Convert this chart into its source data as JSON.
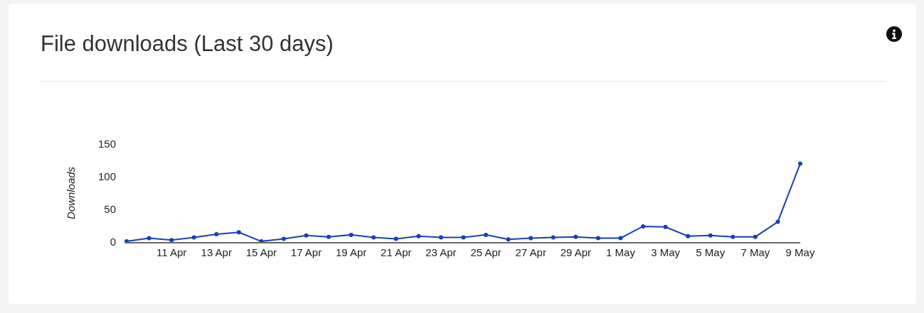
{
  "chart_data": {
    "type": "line",
    "title": "File downloads (Last 30 days)",
    "ylabel": "Downloads",
    "x": [
      "--04-09",
      "--04-10",
      "--04-11",
      "--04-12",
      "--04-13",
      "--04-14",
      "--04-15",
      "--04-16",
      "--04-17",
      "--04-18",
      "--04-19",
      "--04-20",
      "--04-21",
      "--04-22",
      "--04-23",
      "--04-24",
      "--04-25",
      "--04-26",
      "--04-27",
      "--04-28",
      "--04-29",
      "--04-30",
      "--05-01",
      "--05-02",
      "--05-03",
      "--05-04",
      "--05-05",
      "--05-06",
      "--05-07",
      "--05-08",
      "--05-09"
    ],
    "values": [
      1,
      6,
      3,
      7,
      12,
      15,
      1,
      5,
      10,
      8,
      11,
      7,
      5,
      9,
      7,
      7,
      11,
      4,
      6,
      7,
      8,
      6,
      6,
      24,
      23,
      9,
      10,
      8,
      8,
      31,
      120
    ],
    "color": "#1a3eb8",
    "marker": "circle",
    "line_style": "solid",
    "xlim": [
      "--04-09",
      "--05-09"
    ],
    "xticks": [
      {
        "value": "--04-11",
        "label": "11 Apr"
      },
      {
        "value": "--04-13",
        "label": "13 Apr"
      },
      {
        "value": "--04-15",
        "label": "15 Apr"
      },
      {
        "value": "--04-17",
        "label": "17 Apr"
      },
      {
        "value": "--04-19",
        "label": "19 Apr"
      },
      {
        "value": "--04-21",
        "label": "21 Apr"
      },
      {
        "value": "--04-23",
        "label": "23 Apr"
      },
      {
        "value": "--04-25",
        "label": "25 Apr"
      },
      {
        "value": "--04-27",
        "label": "27 Apr"
      },
      {
        "value": "--04-29",
        "label": "29 Apr"
      },
      {
        "value": "--05-01",
        "label": "1 May"
      },
      {
        "value": "--05-03",
        "label": "3 May"
      },
      {
        "value": "--05-05",
        "label": "5 May"
      },
      {
        "value": "--05-07",
        "label": "7 May"
      },
      {
        "value": "--05-09",
        "label": "9 May"
      }
    ],
    "ylim": [
      0,
      150
    ],
    "yticks": [
      0,
      50,
      100,
      150
    ]
  }
}
